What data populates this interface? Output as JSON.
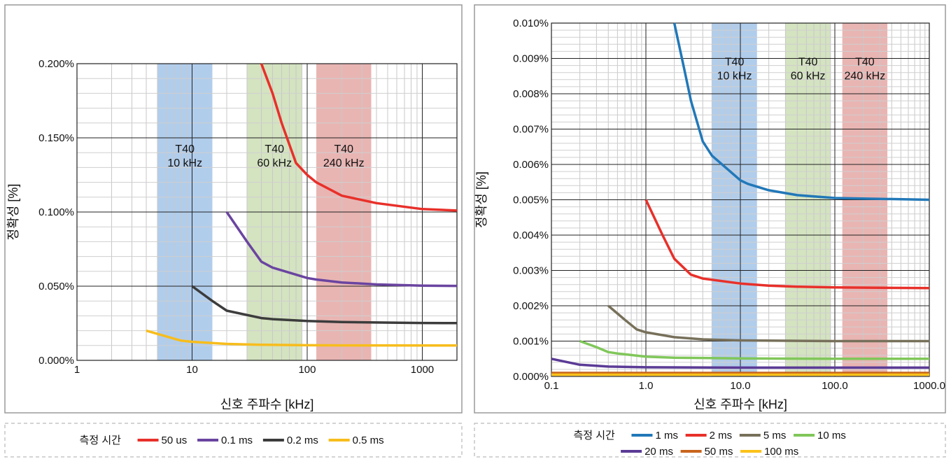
{
  "colors": {
    "band_10k": "#a9c8ea",
    "band_60k": "#cfe0b9",
    "band_240k": "#e5adab",
    "red": "#e8302a",
    "purple": "#6a44a0",
    "dark": "#3c3c3c",
    "yellow": "#f7bd1c",
    "blue": "#2178b8",
    "gray": "#77705a",
    "green": "#80c75a",
    "violet": "#5b3b96",
    "brown": "#c8641c",
    "gold": "#fbc21a"
  },
  "chart_data": [
    {
      "type": "line",
      "xscale": "log",
      "xlim": [
        1,
        2000
      ],
      "ylim": [
        0,
        0.2
      ],
      "xlabel": "신호 주파수 [kHz]",
      "ylabel": "정확성 [%]",
      "xticks": [
        {
          "v": 1,
          "label": "1"
        },
        {
          "v": 10,
          "label": "10"
        },
        {
          "v": 100,
          "label": "100"
        },
        {
          "v": 1000,
          "label": "1000"
        }
      ],
      "yticks": [
        {
          "v": 0,
          "label": "0.000%"
        },
        {
          "v": 0.05,
          "label": "0.050%"
        },
        {
          "v": 0.1,
          "label": "0.100%"
        },
        {
          "v": 0.15,
          "label": "0.150%"
        },
        {
          "v": 0.2,
          "label": "0.200%"
        }
      ],
      "bands": [
        {
          "from": 5,
          "to": 15,
          "color": "band_10k",
          "label1": "T40",
          "label2": "10 kHz",
          "label_y": 0.14
        },
        {
          "from": 30,
          "to": 90,
          "color": "band_60k",
          "label1": "T40",
          "label2": "60 kHz",
          "label_y": 0.14
        },
        {
          "from": 120,
          "to": 360,
          "color": "band_240k",
          "label1": "T40",
          "label2": "240 kHz",
          "label_y": 0.14
        }
      ],
      "series": [
        {
          "name": "50 us",
          "color": "red",
          "points": [
            [
              40,
              0.2
            ],
            [
              50,
              0.18
            ],
            [
              60,
              0.16
            ],
            [
              80,
              0.133
            ],
            [
              100,
              0.125
            ],
            [
              120,
              0.12
            ],
            [
              200,
              0.111
            ],
            [
              400,
              0.106
            ],
            [
              1000,
              0.102
            ],
            [
              2000,
              0.101
            ]
          ]
        },
        {
          "name": "0.1 ms",
          "color": "purple",
          "points": [
            [
              20,
              0.1
            ],
            [
              30,
              0.08
            ],
            [
              40,
              0.0665
            ],
            [
              50,
              0.0625
            ],
            [
              100,
              0.0555
            ],
            [
              120,
              0.0545
            ],
            [
              200,
              0.0525
            ],
            [
              400,
              0.0512
            ],
            [
              1000,
              0.0504
            ],
            [
              2000,
              0.0502
            ]
          ]
        },
        {
          "name": "0.2 ms",
          "color": "dark",
          "points": [
            [
              10,
              0.05
            ],
            [
              15,
              0.04
            ],
            [
              20,
              0.0335
            ],
            [
              40,
              0.0285
            ],
            [
              50,
              0.0278
            ],
            [
              100,
              0.0265
            ],
            [
              200,
              0.0258
            ],
            [
              400,
              0.0255
            ],
            [
              1000,
              0.0252
            ],
            [
              2000,
              0.0251
            ]
          ]
        },
        {
          "name": "0.5 ms",
          "color": "yellow",
          "points": [
            [
              4,
              0.02
            ],
            [
              8,
              0.0133
            ],
            [
              10,
              0.0125
            ],
            [
              20,
              0.0111
            ],
            [
              40,
              0.0105
            ],
            [
              100,
              0.0102
            ],
            [
              200,
              0.0101
            ],
            [
              1000,
              0.01
            ],
            [
              2000,
              0.01
            ]
          ]
        }
      ],
      "legend_title": "측정 시간"
    },
    {
      "type": "line",
      "xscale": "log",
      "xlim": [
        0.1,
        1000
      ],
      "ylim": [
        0,
        0.01
      ],
      "xlabel": "신호 주파수 [kHz]",
      "ylabel": "정확성 [%]",
      "xticks": [
        {
          "v": 0.1,
          "label": "0.1"
        },
        {
          "v": 1,
          "label": "1.0"
        },
        {
          "v": 10,
          "label": "10.0"
        },
        {
          "v": 100,
          "label": "100.0"
        },
        {
          "v": 1000,
          "label": "1000.0"
        }
      ],
      "yticks": [
        {
          "v": 0,
          "label": "0.000%"
        },
        {
          "v": 0.001,
          "label": "0.001%"
        },
        {
          "v": 0.002,
          "label": "0.002%"
        },
        {
          "v": 0.003,
          "label": "0.003%"
        },
        {
          "v": 0.004,
          "label": "0.004%"
        },
        {
          "v": 0.005,
          "label": "0.005%"
        },
        {
          "v": 0.006,
          "label": "0.006%"
        },
        {
          "v": 0.007,
          "label": "0.007%"
        },
        {
          "v": 0.008,
          "label": "0.008%"
        },
        {
          "v": 0.009,
          "label": "0.009%"
        },
        {
          "v": 0.01,
          "label": "0.010%"
        }
      ],
      "bands": [
        {
          "from": 5,
          "to": 15,
          "color": "band_10k",
          "label1": "T40",
          "label2": "10 kHz",
          "label_y": 0.0088
        },
        {
          "from": 30,
          "to": 90,
          "color": "band_60k",
          "label1": "T40",
          "label2": "60 kHz",
          "label_y": 0.0088
        },
        {
          "from": 120,
          "to": 360,
          "color": "band_240k",
          "label1": "T40",
          "label2": "240 kHz",
          "label_y": 0.0088
        }
      ],
      "series": [
        {
          "name": "1 ms",
          "color": "blue",
          "points": [
            [
              2,
              0.01
            ],
            [
              2.5,
              0.0088
            ],
            [
              3,
              0.0078
            ],
            [
              4,
              0.00665
            ],
            [
              5,
              0.00625
            ],
            [
              10,
              0.00555
            ],
            [
              12,
              0.00545
            ],
            [
              20,
              0.00527
            ],
            [
              40,
              0.00513
            ],
            [
              100,
              0.00505
            ],
            [
              1000,
              0.005
            ]
          ]
        },
        {
          "name": "2 ms",
          "color": "red",
          "points": [
            [
              1,
              0.005
            ],
            [
              1.5,
              0.004
            ],
            [
              2,
              0.00333
            ],
            [
              3,
              0.00288
            ],
            [
              4,
              0.00277
            ],
            [
              10,
              0.00263
            ],
            [
              20,
              0.00257
            ],
            [
              40,
              0.00254
            ],
            [
              100,
              0.00252
            ],
            [
              1000,
              0.0025
            ]
          ]
        },
        {
          "name": "5 ms",
          "color": "gray",
          "points": [
            [
              0.4,
              0.002
            ],
            [
              0.6,
              0.0016
            ],
            [
              0.8,
              0.00133
            ],
            [
              1,
              0.00125
            ],
            [
              2,
              0.00111
            ],
            [
              4,
              0.00105
            ],
            [
              10,
              0.00102
            ],
            [
              100,
              0.001
            ],
            [
              1000,
              0.001
            ]
          ]
        },
        {
          "name": "10 ms",
          "color": "green",
          "points": [
            [
              0.2,
              0.001
            ],
            [
              0.3,
              0.00083
            ],
            [
              0.4,
              0.00069
            ],
            [
              0.5,
              0.00065
            ],
            [
              1,
              0.00056
            ],
            [
              2,
              0.00053
            ],
            [
              10,
              0.00051
            ],
            [
              100,
              0.0005
            ],
            [
              1000,
              0.0005
            ]
          ]
        },
        {
          "name": "20 ms",
          "color": "violet",
          "points": [
            [
              0.1,
              0.0005
            ],
            [
              0.2,
              0.00033
            ],
            [
              0.4,
              0.00028
            ],
            [
              1,
              0.00026
            ],
            [
              10,
              0.00025
            ],
            [
              100,
              0.00025
            ],
            [
              1000,
              0.00025
            ]
          ]
        },
        {
          "name": "50 ms",
          "color": "brown",
          "points": [
            [
              0.1,
              0.0001
            ],
            [
              1,
              0.0001
            ],
            [
              1000,
              0.0001
            ]
          ]
        },
        {
          "name": "100 ms",
          "color": "gold",
          "points": [
            [
              0.1,
              5e-05
            ],
            [
              1,
              5e-05
            ],
            [
              1000,
              5e-05
            ]
          ]
        }
      ],
      "legend_title": "측정 시간"
    }
  ]
}
